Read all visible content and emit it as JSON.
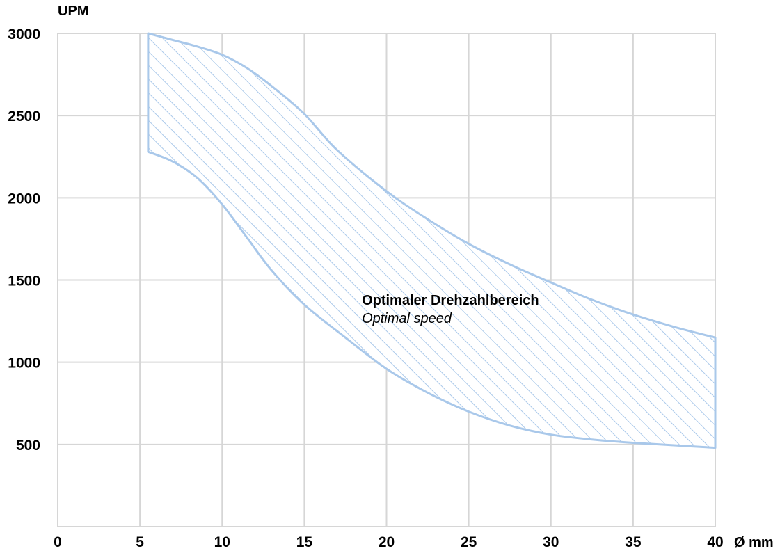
{
  "chart_data": {
    "type": "area",
    "title": "",
    "xlabel": "Ø mm",
    "ylabel": "UPM",
    "xlim": [
      0,
      40
    ],
    "ylim": [
      0,
      3000
    ],
    "x_ticks": [
      0,
      5,
      10,
      15,
      20,
      25,
      30,
      35,
      40
    ],
    "y_ticks": [
      500,
      1000,
      1500,
      2000,
      2500,
      3000
    ],
    "grid": true,
    "band_color": "#a9c8ea",
    "fill_pattern": "diagonal-hatch",
    "series": [
      {
        "role": "upper",
        "x": [
          5.5,
          7,
          8.5,
          10,
          11.5,
          13,
          15,
          17,
          20,
          22.5,
          25,
          27.5,
          30,
          32.5,
          35,
          37.5,
          40
        ],
        "y": [
          3000,
          2960,
          2920,
          2870,
          2790,
          2680,
          2510,
          2290,
          2040,
          1870,
          1720,
          1595,
          1485,
          1380,
          1290,
          1215,
          1150
        ]
      },
      {
        "role": "lower",
        "x": [
          5.5,
          7,
          8.5,
          10,
          11.5,
          13,
          15,
          17.5,
          20,
          22.5,
          25,
          27.5,
          30,
          32.5,
          35,
          37.5,
          40
        ],
        "y": [
          2280,
          2220,
          2120,
          1960,
          1760,
          1560,
          1350,
          1150,
          960,
          815,
          700,
          615,
          560,
          530,
          510,
          495,
          480
        ]
      }
    ],
    "annotations": [
      {
        "text": "Optimaler Drehzahlbereich",
        "style": "bold",
        "x": 18.5,
        "y": 1350
      },
      {
        "text": "Optimal speed",
        "style": "italic",
        "x": 18.5,
        "y": 1240
      }
    ]
  }
}
